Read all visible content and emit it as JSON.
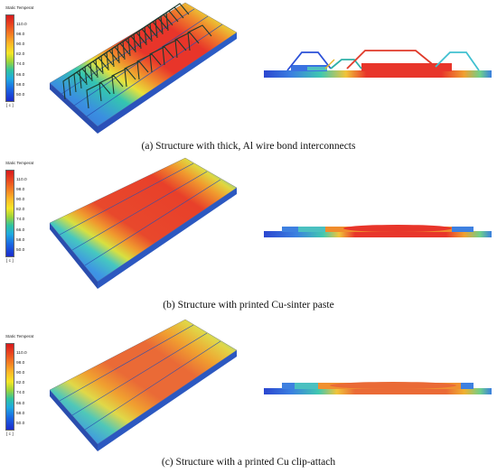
{
  "legend": {
    "title": "Static Temperat",
    "ticks": [
      "110.0",
      "98.0",
      "90.0",
      "82.0",
      "74.0",
      "66.0",
      "58.0",
      "50.0"
    ],
    "unit": "[ c ]"
  },
  "panels": [
    {
      "caption": "(a) Structure with thick, Al wire bond interconnects"
    },
    {
      "caption": "(b) Structure with printed Cu-sinter paste"
    },
    {
      "caption": "(c) Structure with a printed Cu clip-attach"
    }
  ],
  "colors": {
    "hot": "#e8352a",
    "warm": "#f07a2c",
    "cool": "#3a8fe0",
    "cold": "#3b63d8",
    "side": "#2a4fb8"
  }
}
